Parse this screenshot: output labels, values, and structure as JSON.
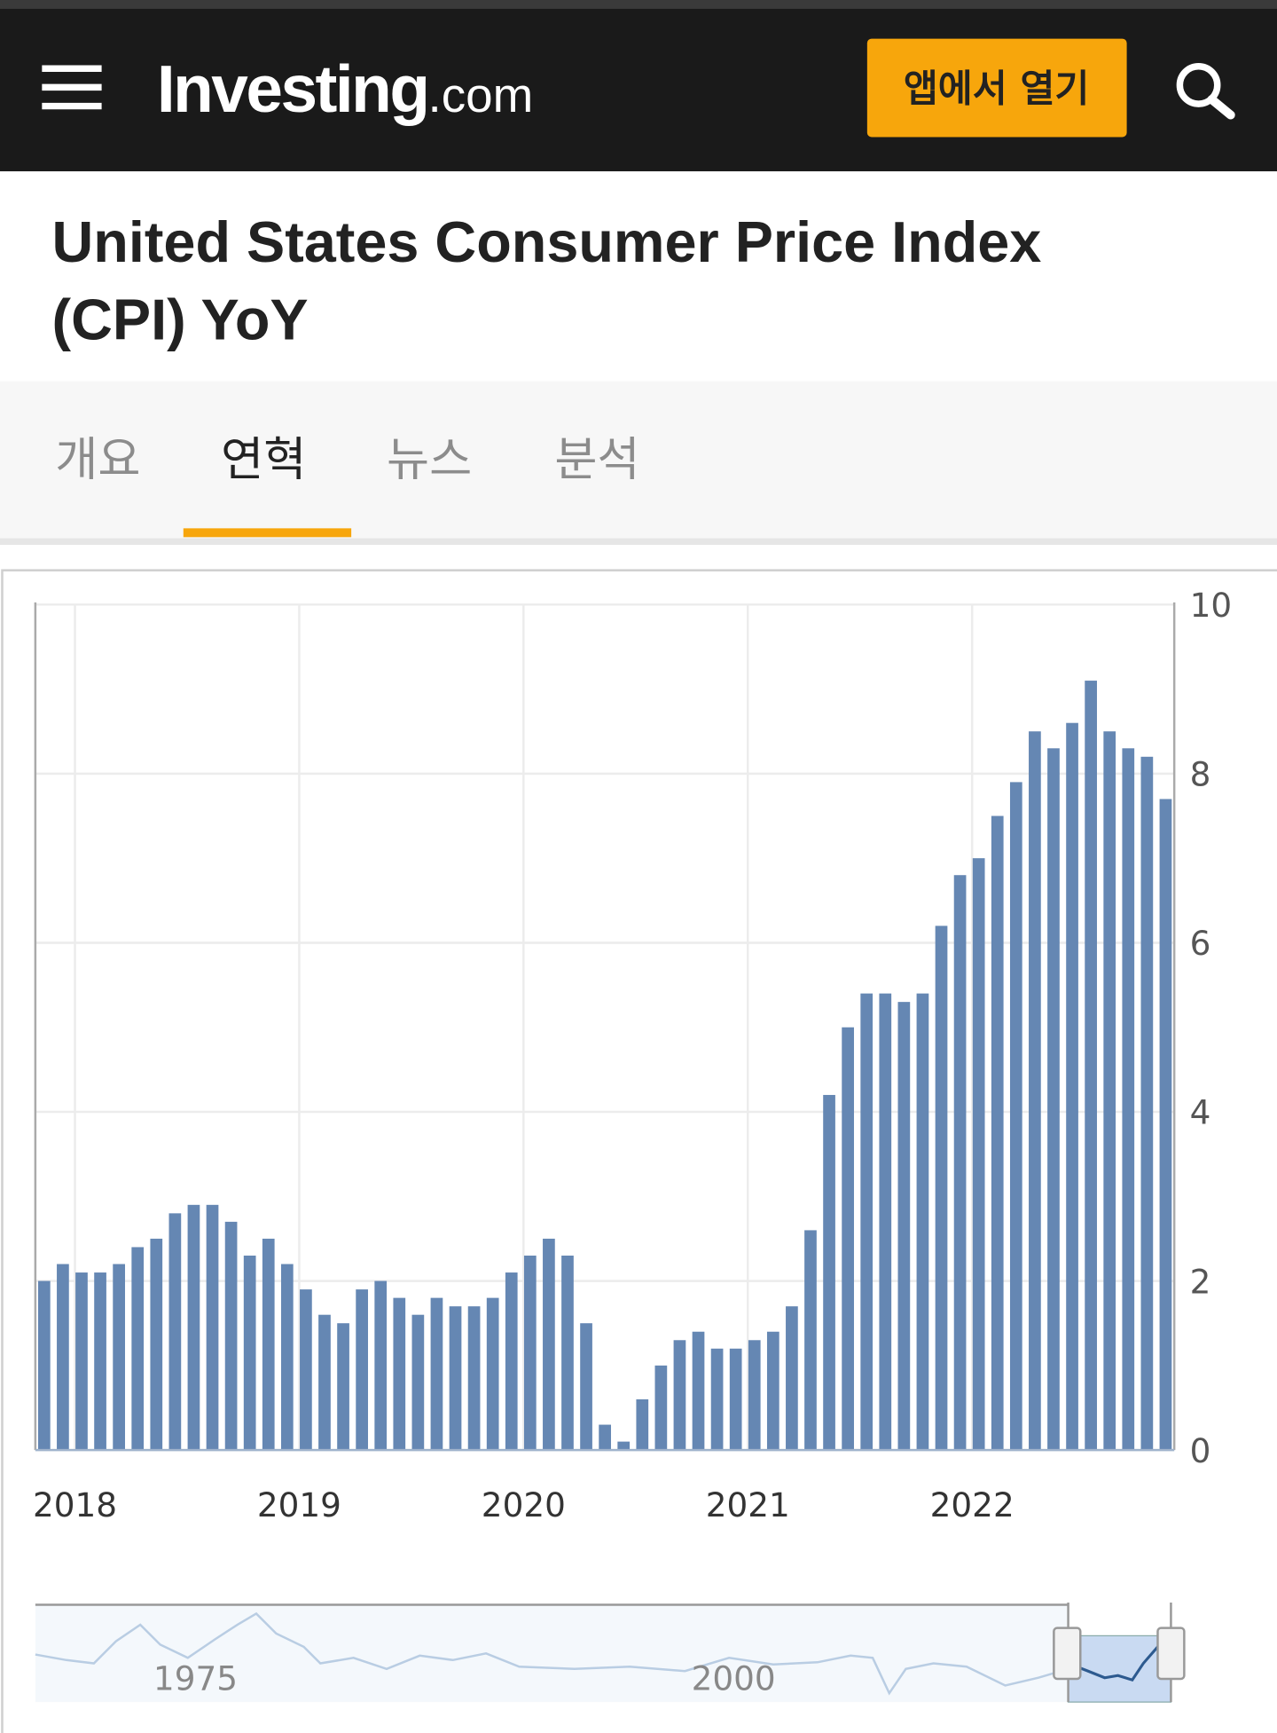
{
  "header": {
    "logo": "Investing",
    "logo_suffix": ".com",
    "button": "앱에서 열기"
  },
  "page_title": [
    "United States Consumer Price Index",
    "(CPI) YoY"
  ],
  "tabs": [
    "개요",
    "연혁",
    "뉴스",
    "분석"
  ],
  "chart_data": {
    "type": "bar",
    "color": "#6587b3",
    "categories": [
      null,
      null,
      "2018",
      null,
      null,
      null,
      null,
      null,
      null,
      null,
      null,
      null,
      null,
      null,
      "2019",
      null,
      null,
      null,
      null,
      null,
      null,
      null,
      null,
      null,
      null,
      null,
      "2020",
      null,
      null,
      null,
      null,
      null,
      null,
      null,
      null,
      null,
      null,
      null,
      "2021",
      null,
      null,
      null,
      null,
      null,
      null,
      null,
      null,
      null,
      null,
      null,
      "2022",
      null,
      null,
      null,
      null,
      null,
      null,
      null,
      null,
      null,
      null
    ],
    "values": [
      2.0,
      2.2,
      2.1,
      2.1,
      2.2,
      2.4,
      2.5,
      2.8,
      2.9,
      2.9,
      2.7,
      2.3,
      2.5,
      2.2,
      1.9,
      1.6,
      1.5,
      1.9,
      2.0,
      1.8,
      1.6,
      1.8,
      1.7,
      1.7,
      1.8,
      2.1,
      2.3,
      2.5,
      2.3,
      1.5,
      0.3,
      0.1,
      0.6,
      1.0,
      1.3,
      1.4,
      1.2,
      1.2,
      1.3,
      1.4,
      1.7,
      2.6,
      4.2,
      5.0,
      5.4,
      5.4,
      5.3,
      5.4,
      6.2,
      6.8,
      7.0,
      7.5,
      7.9,
      8.5,
      8.3,
      8.6,
      9.1,
      8.5,
      8.3,
      8.2,
      7.7
    ],
    "ylim": [
      0,
      10
    ],
    "yticks": [
      0,
      2,
      4,
      6,
      8,
      10
    ],
    "grid": true,
    "navigator_labels": [
      "1975",
      "2000"
    ]
  }
}
